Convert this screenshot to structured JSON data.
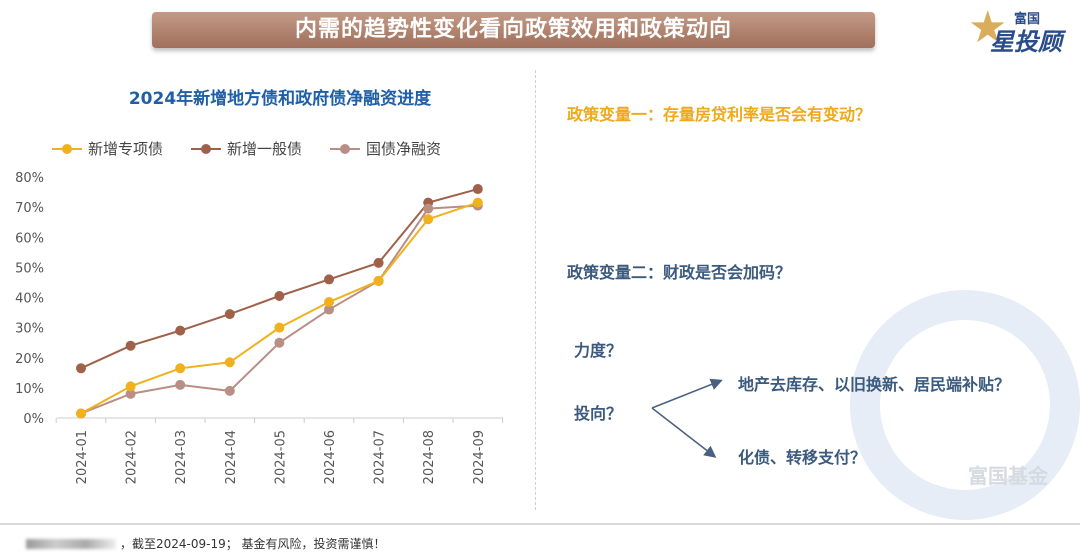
{
  "header": {
    "title": "内需的趋势性变化看向政策效用和政策动向",
    "logo_small": "富国",
    "logo_large": "星投顾"
  },
  "chart_data": {
    "type": "line",
    "title": "2024年新增地方债和政府债净融资进度",
    "categories": [
      "2024-01",
      "2024-02",
      "2024-03",
      "2024-04",
      "2024-05",
      "2024-06",
      "2024-07",
      "2024-08",
      "2024-09"
    ],
    "yticks": [
      "0%",
      "10%",
      "20%",
      "30%",
      "40%",
      "50%",
      "60%",
      "70%",
      "80%"
    ],
    "ylim": [
      0,
      80
    ],
    "legend": "top",
    "grid": false,
    "series": [
      {
        "name": "新增专项债",
        "color": "#f0b11c",
        "values": [
          1.5,
          10.5,
          16.5,
          18.5,
          30,
          38.5,
          45.5,
          66,
          71.5
        ]
      },
      {
        "name": "新增一般债",
        "color": "#a0614a",
        "values": [
          16.5,
          24,
          29,
          34.5,
          40.5,
          46,
          51.5,
          71.5,
          76
        ]
      },
      {
        "name": "国债净融资",
        "color": "#b98e84",
        "values": [
          1.5,
          8,
          11,
          9,
          25,
          36,
          45.5,
          69.5,
          70.5
        ]
      }
    ]
  },
  "right": {
    "q1": "政策变量一：存量房贷利率是否会有变动？",
    "q2": "政策变量二：财政是否会加码？",
    "strength": "力度？",
    "direction": "投向？",
    "branch1": "地产去库存、以旧换新、居民端补贴？",
    "branch2": "化债、转移支付？",
    "watermark": "富国基金",
    "colors": {
      "q1": "#f0a81c",
      "q2": "#3b5a7e"
    }
  },
  "footer": {
    "text": "，截至2024-09-19；  基金有风险，投资需谨慎！"
  }
}
